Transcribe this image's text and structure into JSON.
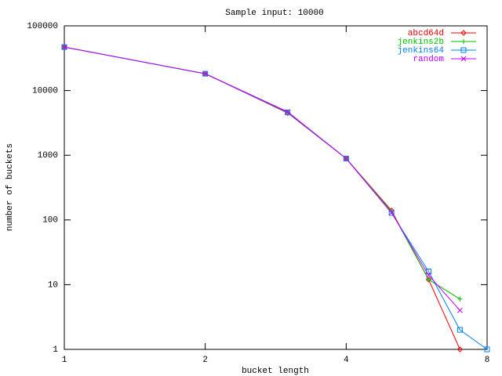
{
  "chart_data": {
    "type": "line",
    "title": "Sample input: 10000",
    "x_label": "bucket length",
    "y_label": "number of buckets",
    "x": [
      1,
      2,
      3,
      4,
      5,
      6,
      7,
      8
    ],
    "x_log": true,
    "y_log": true,
    "xlim": [
      1,
      8
    ],
    "ylim": [
      1,
      100000
    ],
    "xticks": [
      1,
      2,
      4,
      8
    ],
    "yticks": [
      1,
      10,
      100,
      1000,
      10000,
      100000
    ],
    "legend": "top-right",
    "series": [
      {
        "name": "abcd64d",
        "color": "#ff0000",
        "marker": "diamond",
        "values": [
          47000,
          18200,
          4500,
          890,
          140,
          12,
          1,
          null
        ]
      },
      {
        "name": "jenkins2b",
        "color": "#00c000",
        "marker": "plus",
        "values": [
          47000,
          18200,
          4600,
          890,
          135,
          12,
          6,
          null
        ]
      },
      {
        "name": "jenkins64",
        "color": "#0080ff",
        "marker": "square",
        "values": [
          47000,
          18200,
          4600,
          890,
          128,
          16,
          2,
          1
        ]
      },
      {
        "name": "random",
        "color": "#c000ff",
        "marker": "cross",
        "values": [
          47000,
          18200,
          4700,
          890,
          130,
          14,
          4,
          null
        ]
      }
    ]
  }
}
